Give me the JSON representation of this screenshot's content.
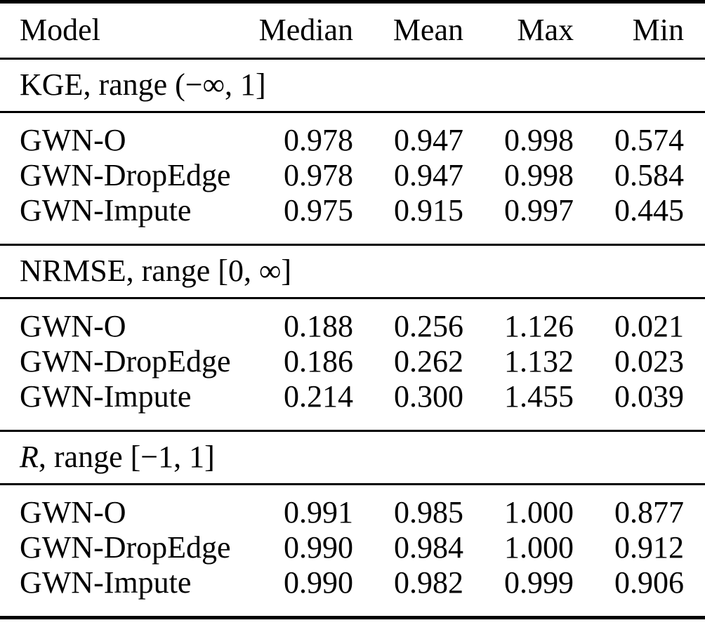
{
  "table": {
    "headers": {
      "model": "Model",
      "median": "Median",
      "mean": "Mean",
      "max": "Max",
      "min": "Min"
    },
    "sections": [
      {
        "metric": "KGE",
        "range_text": ", range (−∞, 1]",
        "rows": [
          {
            "model": "GWN-O",
            "median": "0.978",
            "mean": "0.947",
            "max": "0.998",
            "min": "0.574"
          },
          {
            "model": "GWN-DropEdge",
            "median": "0.978",
            "mean": "0.947",
            "max": "0.998",
            "min": "0.584"
          },
          {
            "model": "GWN-Impute",
            "median": "0.975",
            "mean": "0.915",
            "max": "0.997",
            "min": "0.445"
          }
        ]
      },
      {
        "metric": "NRMSE",
        "range_text": ", range [0, ∞]",
        "rows": [
          {
            "model": "GWN-O",
            "median": "0.188",
            "mean": "0.256",
            "max": "1.126",
            "min": "0.021"
          },
          {
            "model": "GWN-DropEdge",
            "median": "0.186",
            "mean": "0.262",
            "max": "1.132",
            "min": "0.023"
          },
          {
            "model": "GWN-Impute",
            "median": "0.214",
            "mean": "0.300",
            "max": "1.455",
            "min": "0.039"
          }
        ]
      },
      {
        "metric": "R",
        "range_text": ", range [−1, 1]",
        "rows": [
          {
            "model": "GWN-O",
            "median": "0.991",
            "mean": "0.985",
            "max": "1.000",
            "min": "0.877"
          },
          {
            "model": "GWN-DropEdge",
            "median": "0.990",
            "mean": "0.984",
            "max": "1.000",
            "min": "0.912"
          },
          {
            "model": "GWN-Impute",
            "median": "0.990",
            "mean": "0.982",
            "max": "0.999",
            "min": "0.906"
          }
        ]
      }
    ]
  }
}
